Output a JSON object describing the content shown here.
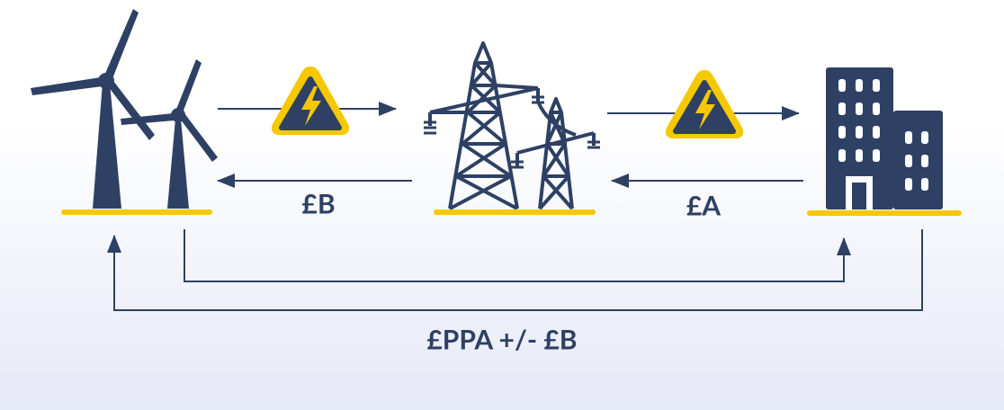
{
  "labels": {
    "generator_to_grid_payment": "£B",
    "consumer_to_grid_payment": "£A",
    "ppa_payment": "£PPA +/- £B"
  }
}
